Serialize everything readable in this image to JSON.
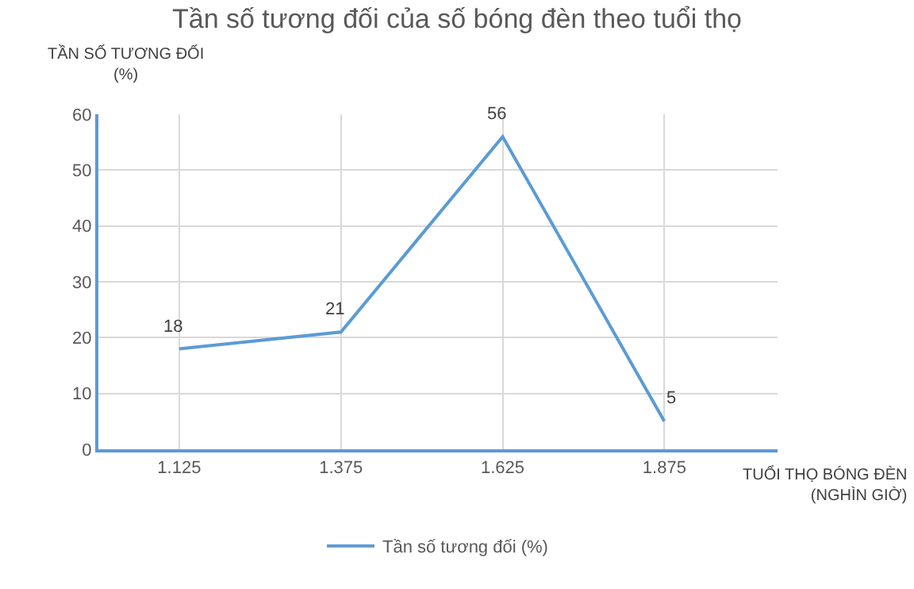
{
  "chart_data": {
    "type": "line",
    "title": "Tần số tương đối của số bóng đèn theo tuổi thọ",
    "xlabel": "TUỔI THỌ BÓNG ĐÈN\n(NGHÌN GIỜ)",
    "ylabel": "TẦN SỐ TƯƠNG ĐỐI\n(%)",
    "categories": [
      "1.125",
      "1.375",
      "1.625",
      "1.875"
    ],
    "series": [
      {
        "name": "Tần số tương đối (%)",
        "color": "#5b9bd5",
        "values": [
          18,
          21,
          56,
          5
        ]
      }
    ],
    "ylim": [
      0,
      60
    ],
    "yticks": [
      0,
      10,
      20,
      30,
      40,
      50,
      60
    ],
    "grid": true,
    "legend": "bottom",
    "data_labels": true,
    "marker": "none",
    "line_style": "solid"
  }
}
